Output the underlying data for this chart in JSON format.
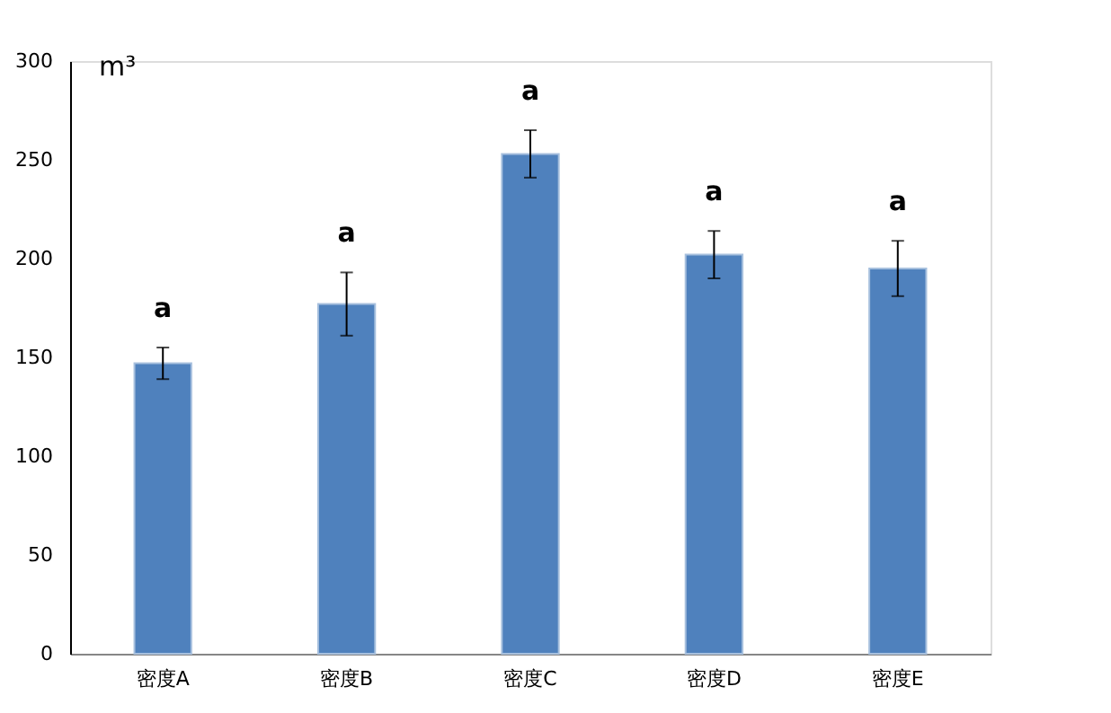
{
  "chart_data": {
    "type": "bar",
    "ylabel": "m³",
    "categories": [
      "密度A",
      "密度B",
      "密度C",
      "密度D",
      "密度E"
    ],
    "values": [
      147,
      177,
      253,
      202,
      195
    ],
    "errors": [
      8,
      16,
      12,
      12,
      14
    ],
    "color": "#4f81bd",
    "ylim": [
      0,
      300
    ],
    "yticks": [
      0,
      50,
      100,
      150,
      200,
      250,
      300
    ],
    "grid": false,
    "annotations": [
      "a",
      "a",
      "a",
      "a",
      "a"
    ]
  }
}
